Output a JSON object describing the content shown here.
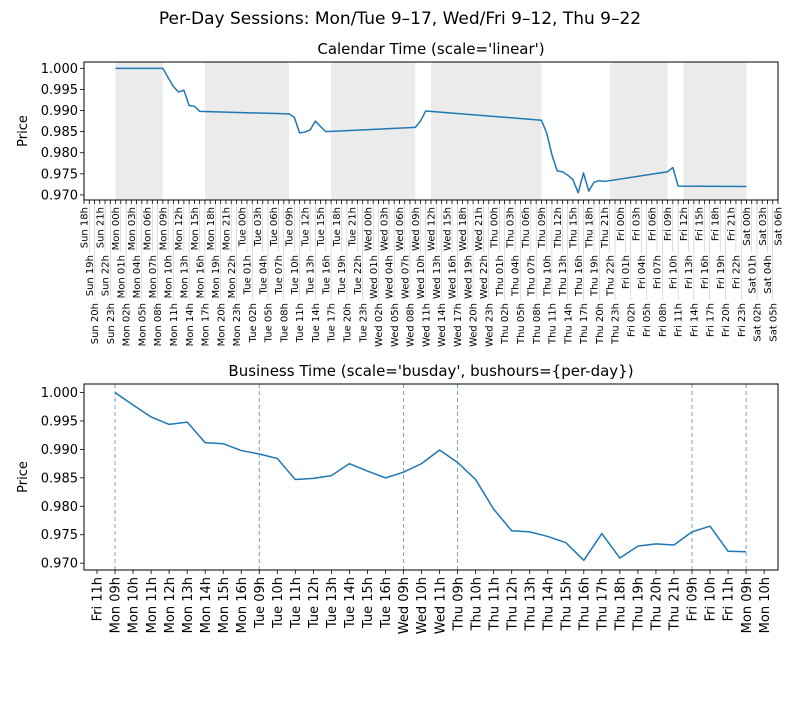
{
  "figure_title": "Per-Day Sessions: Mon/Tue 9–17, Wed/Fri 9–12, Thu 9–22",
  "chart_data": [
    {
      "type": "line",
      "title": "Calendar Time (scale='linear')",
      "xlabel": "",
      "ylabel": "Price",
      "ylim": [
        0.9688,
        1.0015
      ],
      "yticks": [
        "0.970",
        "0.975",
        "0.980",
        "0.985",
        "0.990",
        "0.995",
        "1.000"
      ],
      "ytick_values": [
        0.97,
        0.975,
        0.98,
        0.985,
        0.99,
        0.995,
        1.0
      ],
      "grid": false,
      "line_color": "#1f77b4",
      "shade_color": "#ebebeb",
      "off_session_shading": [
        [
          "Mon 00h",
          "Mon 09h"
        ],
        [
          "Mon 17h",
          "Tue 09h"
        ],
        [
          "Tue 17h",
          "Wed 09h"
        ],
        [
          "Wed 12h",
          "Thu 09h"
        ],
        [
          "Thu 22h",
          "Fri 09h"
        ],
        [
          "Fri 12h",
          "Sat 00h"
        ]
      ],
      "tick_labels": [
        "Sun 18h",
        "Sun 19h",
        "Sun 20h",
        "Sun 21h",
        "Sun 22h",
        "Sun 23h",
        "Mon 00h",
        "Mon 01h",
        "Mon 02h",
        "Mon 03h",
        "Mon 04h",
        "Mon 05h",
        "Mon 06h",
        "Mon 07h",
        "Mon 08h",
        "Mon 09h",
        "Mon 10h",
        "Mon 11h",
        "Mon 12h",
        "Mon 13h",
        "Mon 14h",
        "Mon 15h",
        "Mon 16h",
        "Mon 17h",
        "Mon 18h",
        "Mon 19h",
        "Mon 20h",
        "Mon 21h",
        "Mon 22h",
        "Mon 23h",
        "Tue 00h",
        "Tue 01h",
        "Tue 02h",
        "Tue 03h",
        "Tue 04h",
        "Tue 05h",
        "Tue 06h",
        "Tue 07h",
        "Tue 08h",
        "Tue 09h",
        "Tue 10h",
        "Tue 11h",
        "Tue 12h",
        "Tue 13h",
        "Tue 14h",
        "Tue 15h",
        "Tue 16h",
        "Tue 17h",
        "Tue 18h",
        "Tue 19h",
        "Tue 20h",
        "Tue 21h",
        "Tue 22h",
        "Tue 23h",
        "Wed 00h",
        "Wed 01h",
        "Wed 02h",
        "Wed 03h",
        "Wed 04h",
        "Wed 05h",
        "Wed 06h",
        "Wed 07h",
        "Wed 08h",
        "Wed 09h",
        "Wed 10h",
        "Wed 11h",
        "Wed 12h",
        "Wed 13h",
        "Wed 14h",
        "Wed 15h",
        "Wed 16h",
        "Wed 17h",
        "Wed 18h",
        "Wed 19h",
        "Wed 20h",
        "Wed 21h",
        "Wed 22h",
        "Wed 23h",
        "Thu 00h",
        "Thu 01h",
        "Thu 02h",
        "Thu 03h",
        "Thu 04h",
        "Thu 05h",
        "Thu 06h",
        "Thu 07h",
        "Thu 08h",
        "Thu 09h",
        "Thu 10h",
        "Thu 11h",
        "Thu 12h",
        "Thu 13h",
        "Thu 14h",
        "Thu 15h",
        "Thu 16h",
        "Thu 17h",
        "Thu 18h",
        "Thu 19h",
        "Thu 20h",
        "Thu 21h",
        "Thu 22h",
        "Thu 23h",
        "Fri 00h",
        "Fri 01h",
        "Fri 02h",
        "Fri 03h",
        "Fri 04h",
        "Fri 05h",
        "Fri 06h",
        "Fri 07h",
        "Fri 08h",
        "Fri 09h",
        "Fri 10h",
        "Fri 11h",
        "Fri 12h",
        "Fri 13h",
        "Fri 14h",
        "Fri 15h",
        "Fri 16h",
        "Fri 17h",
        "Fri 18h",
        "Fri 19h",
        "Fri 20h",
        "Fri 21h",
        "Fri 22h",
        "Fri 23h",
        "Sat 00h",
        "Sat 01h",
        "Sat 02h",
        "Sat 03h",
        "Sat 04h",
        "Sat 05h",
        "Sat 06h"
      ],
      "x": [
        "Mon 00h",
        "Mon 09h",
        "Mon 10h",
        "Mon 11h",
        "Mon 12h",
        "Mon 13h",
        "Mon 14h",
        "Mon 15h",
        "Mon 16h",
        "Tue 09h",
        "Tue 10h",
        "Tue 11h",
        "Tue 12h",
        "Tue 13h",
        "Tue 14h",
        "Tue 15h",
        "Tue 16h",
        "Wed 09h",
        "Wed 10h",
        "Wed 11h",
        "Thu 09h",
        "Thu 10h",
        "Thu 11h",
        "Thu 12h",
        "Thu 13h",
        "Thu 14h",
        "Thu 15h",
        "Thu 16h",
        "Thu 17h",
        "Thu 18h",
        "Thu 19h",
        "Thu 20h",
        "Thu 21h",
        "Fri 09h",
        "Fri 10h",
        "Fri 11h",
        "Sat 00h"
      ],
      "y": [
        1.0,
        1.0,
        0.9978,
        0.9957,
        0.9944,
        0.9948,
        0.9912,
        0.991,
        0.9898,
        0.9892,
        0.9884,
        0.9847,
        0.9849,
        0.9854,
        0.9875,
        0.9862,
        0.985,
        0.986,
        0.9875,
        0.9899,
        0.9877,
        0.9847,
        0.9795,
        0.9757,
        0.9755,
        0.9747,
        0.9736,
        0.9705,
        0.9752,
        0.9709,
        0.973,
        0.9734,
        0.9732,
        0.9755,
        0.9765,
        0.9721,
        0.972
      ]
    },
    {
      "type": "line",
      "title": "Business Time (scale='busday', bushours={per-day})",
      "xlabel": "",
      "ylabel": "Price",
      "ylim": [
        0.9688,
        1.0015
      ],
      "yticks": [
        "0.970",
        "0.975",
        "0.980",
        "0.985",
        "0.990",
        "0.995",
        "1.000"
      ],
      "ytick_values": [
        0.97,
        0.975,
        0.98,
        0.985,
        0.99,
        0.995,
        1.0
      ],
      "grid": false,
      "line_color": "#1f77b4",
      "tick_labels": [
        "Fri 11h",
        "Mon 09h",
        "Mon 10h",
        "Mon 11h",
        "Mon 12h",
        "Mon 13h",
        "Mon 14h",
        "Mon 15h",
        "Mon 16h",
        "Tue 09h",
        "Tue 10h",
        "Tue 11h",
        "Tue 12h",
        "Tue 13h",
        "Tue 14h",
        "Tue 15h",
        "Tue 16h",
        "Wed 09h",
        "Wed 10h",
        "Wed 11h",
        "Thu 09h",
        "Thu 10h",
        "Thu 11h",
        "Thu 12h",
        "Thu 13h",
        "Thu 14h",
        "Thu 15h",
        "Thu 16h",
        "Thu 17h",
        "Thu 18h",
        "Thu 19h",
        "Thu 20h",
        "Thu 21h",
        "Fri 09h",
        "Fri 10h",
        "Fri 11h",
        "Mon 09h",
        "Mon 10h"
      ],
      "session_boundaries": [
        "Mon 09h",
        "Tue 09h",
        "Wed 09h",
        "Thu 09h",
        "Fri 09h",
        "Mon 09h"
      ],
      "x": [
        "Mon 09h",
        "Mon 10h",
        "Mon 11h",
        "Mon 12h",
        "Mon 13h",
        "Mon 14h",
        "Mon 15h",
        "Mon 16h",
        "Tue 09h",
        "Tue 10h",
        "Tue 11h",
        "Tue 12h",
        "Tue 13h",
        "Tue 14h",
        "Tue 15h",
        "Tue 16h",
        "Wed 09h",
        "Wed 10h",
        "Wed 11h",
        "Thu 09h",
        "Thu 10h",
        "Thu 11h",
        "Thu 12h",
        "Thu 13h",
        "Thu 14h",
        "Thu 15h",
        "Thu 16h",
        "Thu 17h",
        "Thu 18h",
        "Thu 19h",
        "Thu 20h",
        "Thu 21h",
        "Fri 09h",
        "Fri 10h",
        "Fri 11h",
        "Mon 09h"
      ],
      "y": [
        1.0,
        0.9978,
        0.9957,
        0.9944,
        0.9948,
        0.9912,
        0.991,
        0.9898,
        0.9892,
        0.9884,
        0.9847,
        0.9849,
        0.9854,
        0.9875,
        0.9862,
        0.985,
        0.986,
        0.9875,
        0.9899,
        0.9877,
        0.9847,
        0.9795,
        0.9757,
        0.9755,
        0.9747,
        0.9736,
        0.9705,
        0.9752,
        0.9709,
        0.973,
        0.9734,
        0.9732,
        0.9755,
        0.9765,
        0.9721,
        0.972
      ]
    }
  ]
}
